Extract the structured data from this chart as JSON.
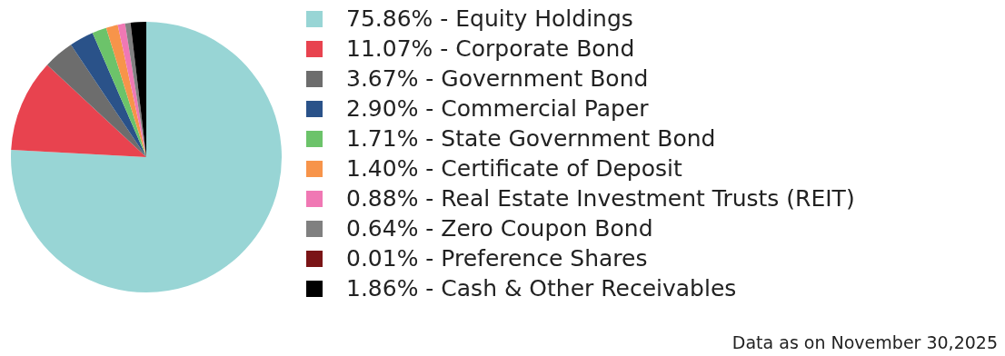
{
  "chart_data": {
    "type": "pie",
    "categories": [
      "75.86% - Equity Holdings",
      "11.07% - Corporate Bond",
      "3.67% - Government Bond",
      "2.90% - Commercial Paper",
      "1.71% - State Government Bond",
      "1.40% - Certificate of Deposit",
      "0.88% - Real Estate Investment Trusts (REIT)",
      "0.64% - Zero Coupon Bond",
      "0.01% - Preference Shares",
      "1.86% - Cash & Other Receivables"
    ],
    "values": [
      75.86,
      11.07,
      3.67,
      2.9,
      1.71,
      1.4,
      0.88,
      0.64,
      0.01,
      1.86
    ],
    "colors": [
      "#98d5d5",
      "#e8434f",
      "#6d6d6d",
      "#2a5289",
      "#6cc36a",
      "#f7944a",
      "#f078b4",
      "#808080",
      "#7a1416",
      "#000000"
    ],
    "legend": "right",
    "annotations": [
      "Data as on November 30,2025"
    ]
  }
}
